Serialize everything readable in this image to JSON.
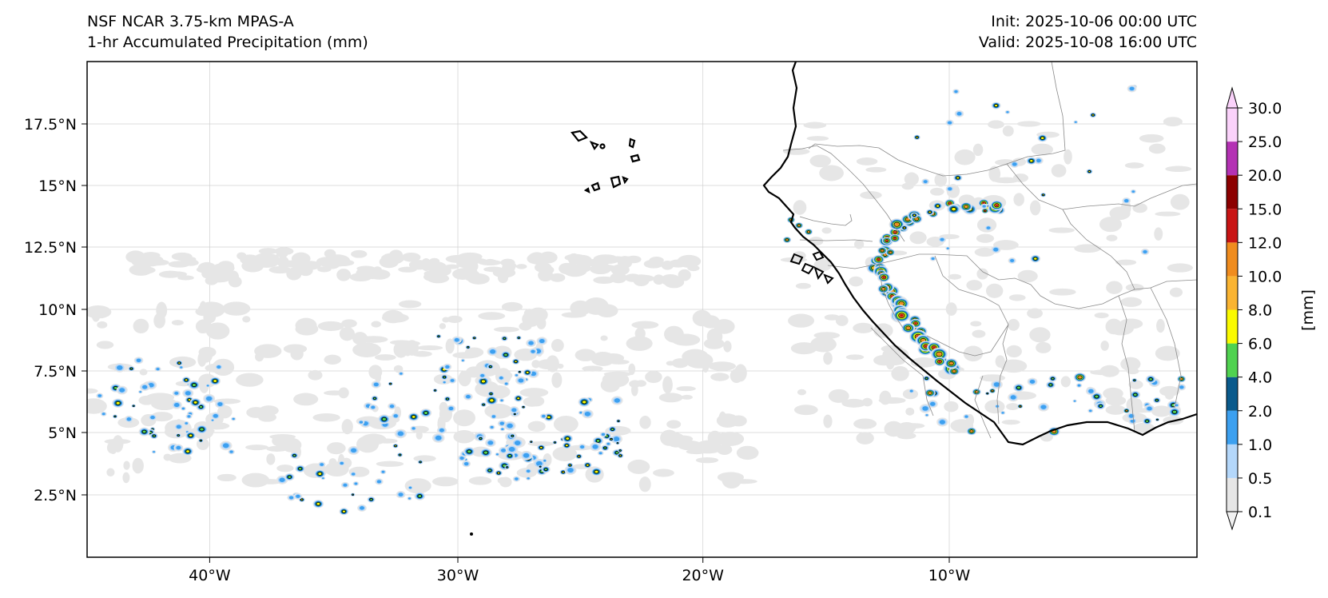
{
  "header": {
    "model": "NSF NCAR 3.75-km MPAS-A",
    "field": "1-hr Accumulated Precipitation (mm)",
    "init": "Init: 2025-10-06 00:00 UTC",
    "valid": "Valid: 2025-10-08 16:00 UTC"
  },
  "axes": {
    "lon_ticks": [
      "40°W",
      "30°W",
      "20°W",
      "10°W"
    ],
    "lat_ticks": [
      "17.5°N",
      "15°N",
      "12.5°N",
      "10°N",
      "7.5°N",
      "5°N",
      "2.5°N"
    ]
  },
  "colorbar": {
    "unit_label": "[mm]",
    "levels": [
      "0.1",
      "0.5",
      "1.0",
      "2.0",
      "4.0",
      "6.0",
      "8.0",
      "10.0",
      "12.0",
      "15.0",
      "20.0",
      "25.0",
      "30.0"
    ],
    "colors": [
      "#e6e6e6",
      "#b4d7fa",
      "#3ca0f0",
      "#0a5a8c",
      "#50d250",
      "#fafa00",
      "#fab432",
      "#f08c1e",
      "#c81414",
      "#8c0000",
      "#b432b4",
      "#fad2fa"
    ]
  },
  "map_extent": {
    "lon_min": -45,
    "lon_max": 0,
    "lat_min": 0,
    "lat_max": 20
  }
}
